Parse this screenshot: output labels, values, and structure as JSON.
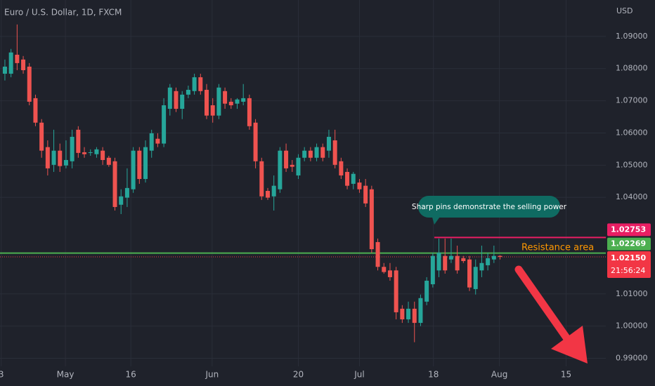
{
  "chart_data": {
    "type": "candlestick",
    "title": "Euro / U.S. Dollar, 1D, FXCM",
    "y_axis_label": "USD",
    "up_color": "#26a69a",
    "down_color": "#ef5350",
    "grid": true,
    "x": [
      0,
      1,
      2,
      3,
      4,
      5,
      6,
      7,
      8,
      9,
      10,
      11,
      12,
      13,
      14,
      15,
      16,
      17,
      18,
      19,
      20,
      21,
      22,
      23,
      24,
      25,
      26,
      27,
      28,
      29,
      30,
      31,
      32,
      33,
      34,
      35,
      36,
      37,
      38,
      39,
      40,
      41,
      42,
      43,
      44,
      45,
      46,
      47,
      48,
      49,
      50,
      51,
      52,
      53,
      54,
      55,
      56,
      57,
      58,
      59,
      60,
      61,
      62,
      63,
      64,
      65,
      66,
      67,
      68,
      69,
      70,
      71,
      72,
      73,
      74,
      75,
      76,
      77,
      78,
      79,
      80,
      81
    ],
    "open": [
      1.0784,
      1.0784,
      1.0843,
      1.0828,
      1.0806,
      1.0708,
      1.0632,
      1.0556,
      1.0501,
      1.0545,
      1.0499,
      1.0512,
      1.061,
      1.054,
      1.0538,
      1.0534,
      1.0545,
      1.0523,
      1.0512,
      1.0377,
      1.0399,
      1.0425,
      1.0545,
      1.0457,
      1.0545,
      1.0582,
      1.0567,
      1.0675,
      1.073,
      1.0675,
      1.0719,
      1.073,
      1.0773,
      1.0734,
      1.0686,
      1.0654,
      1.073,
      1.0697,
      1.0691,
      1.0697,
      1.0708,
      1.0632,
      1.0512,
      1.042,
      1.0403,
      1.0425,
      1.0545,
      1.0501,
      1.0468,
      1.0523,
      1.0545,
      1.0523,
      1.0556,
      1.0545,
      1.0577,
      1.0512,
      1.0479,
      1.0442,
      1.0446,
      1.0436,
      1.0425,
      1.0261,
      1.0184,
      1.0173,
      1.0173,
      1.0054,
      1.0021,
      1.0054,
      1.001,
      1.0076,
      1.013,
      1.0173,
      1.0218,
      1.0207,
      1.0218,
      1.0211,
      1.0207,
      1.0115,
      1.0173,
      1.0189,
      1.0207,
      1.0218
    ],
    "high": [
      1.0828,
      1.0861,
      1.0937,
      1.0839,
      1.0817,
      1.0719,
      1.0643,
      1.0577,
      1.061,
      1.0567,
      1.0577,
      1.061,
      1.0621,
      1.0556,
      1.0549,
      1.0556,
      1.0556,
      1.0529,
      1.0523,
      1.0425,
      1.049,
      1.0556,
      1.0556,
      1.0577,
      1.061,
      1.0599,
      1.0708,
      1.0752,
      1.0741,
      1.073,
      1.0747,
      1.0784,
      1.0784,
      1.0752,
      1.0708,
      1.0752,
      1.0741,
      1.0708,
      1.0708,
      1.0752,
      1.0719,
      1.0643,
      1.0523,
      1.0429,
      1.0468,
      1.0556,
      1.0567,
      1.0516,
      1.0534,
      1.0556,
      1.0556,
      1.0567,
      1.0567,
      1.061,
      1.061,
      1.0523,
      1.049,
      1.0479,
      1.0457,
      1.0457,
      1.0436,
      1.0272,
      1.0196,
      1.0196,
      1.0184,
      1.0065,
      1.0076,
      1.0076,
      1.0098,
      1.0152,
      1.0228,
      1.0272,
      1.0272,
      1.0272,
      1.025,
      1.0218,
      1.0218,
      1.0207,
      1.025,
      1.0228,
      1.025,
      1.022
    ],
    "low": [
      1.0763,
      1.0773,
      1.0795,
      1.0784,
      1.0686,
      1.0621,
      1.0523,
      1.0468,
      1.0479,
      1.0479,
      1.049,
      1.049,
      1.0523,
      1.0523,
      1.0529,
      1.0523,
      1.0501,
      1.0495,
      1.0359,
      1.0348,
      1.037,
      1.0414,
      1.0442,
      1.0446,
      1.0523,
      1.0556,
      1.0556,
      1.0654,
      1.0665,
      1.0643,
      1.0708,
      1.0719,
      1.0719,
      1.0643,
      1.0632,
      1.0643,
      1.0675,
      1.0675,
      1.0675,
      1.0686,
      1.061,
      1.049,
      1.0392,
      1.0392,
      1.0359,
      1.0414,
      1.0479,
      1.0479,
      1.0457,
      1.0512,
      1.0512,
      1.0512,
      1.0512,
      1.0523,
      1.049,
      1.0457,
      1.0425,
      1.0425,
      1.0414,
      1.037,
      1.0228,
      1.0173,
      1.0163,
      1.0141,
      1.0021,
      1.001,
      1.001,
      0.995,
      1.0,
      1.0065,
      1.012,
      1.0152,
      1.0163,
      1.0196,
      1.0163,
      1.0196,
      1.0109,
      1.0098,
      1.0152,
      1.0173,
      1.0196,
      1.0207
    ],
    "close": [
      1.0806,
      1.085,
      1.0817,
      1.0795,
      1.0697,
      1.0632,
      1.0545,
      1.049,
      1.0545,
      1.0497,
      1.0516,
      1.0588,
      1.0538,
      1.0534,
      1.054,
      1.0549,
      1.0516,
      1.0501,
      1.037,
      1.0403,
      1.0429,
      1.0545,
      1.0457,
      1.0556,
      1.0599,
      1.0567,
      1.0686,
      1.0741,
      1.0675,
      1.0719,
      1.0734,
      1.0773,
      1.073,
      1.0654,
      1.0654,
      1.0741,
      1.0691,
      1.0686,
      1.0704,
      1.0708,
      1.0621,
      1.0512,
      1.0403,
      1.0399,
      1.0436,
      1.0545,
      1.049,
      1.0495,
      1.0523,
      1.0545,
      1.0523,
      1.0556,
      1.0523,
      1.0588,
      1.0501,
      1.0468,
      1.0436,
      1.0473,
      1.0425,
      1.0381,
      1.0239,
      1.0184,
      1.0168,
      1.0152,
      1.0043,
      1.0021,
      1.0054,
      1.001,
      1.0087,
      1.0141,
      1.0218,
      1.0228,
      1.0173,
      1.0218,
      1.0173,
      1.0202,
      1.012,
      1.0184,
      1.0196,
      1.0211,
      1.0218,
      1.0215
    ],
    "xlim": [
      -0.8,
      98.3
    ],
    "xticks": [
      {
        "value": -0.6,
        "label": "3"
      },
      {
        "value": 9.9,
        "label": "May"
      },
      {
        "value": 20.6,
        "label": "16"
      },
      {
        "value": 33.9,
        "label": "Jun"
      },
      {
        "value": 48.0,
        "label": "20"
      },
      {
        "value": 58.0,
        "label": "Jul"
      },
      {
        "value": 70.1,
        "label": "18"
      },
      {
        "value": 80.9,
        "label": "Aug"
      },
      {
        "value": 91.8,
        "label": "15"
      }
    ],
    "ylim": [
      0.9875,
      1.1013
    ],
    "yticks": [
      {
        "value": 1.09,
        "label": "1.09000"
      },
      {
        "value": 1.08,
        "label": "1.08000"
      },
      {
        "value": 1.07,
        "label": "1.07000"
      },
      {
        "value": 1.06,
        "label": "1.06000"
      },
      {
        "value": 1.05,
        "label": "1.05000"
      },
      {
        "value": 1.04,
        "label": "1.04000"
      },
      {
        "value": 1.01,
        "label": "1.01000"
      },
      {
        "value": 1.0,
        "label": "1.00000"
      },
      {
        "value": 0.99,
        "label": "0.99000"
      }
    ],
    "levels": [
      {
        "value": 1.02753,
        "label": "1.02753",
        "color": "#e91e63"
      },
      {
        "value": 1.02269,
        "label": "1.02269",
        "color": "#4caf50"
      }
    ],
    "last_price": {
      "value": 1.0215,
      "label": "1.02150",
      "countdown": "21:56:24",
      "color": "#f23645"
    },
    "annotations": [
      "Sharp pins demonstrate the selling power",
      "Resistance area"
    ]
  }
}
